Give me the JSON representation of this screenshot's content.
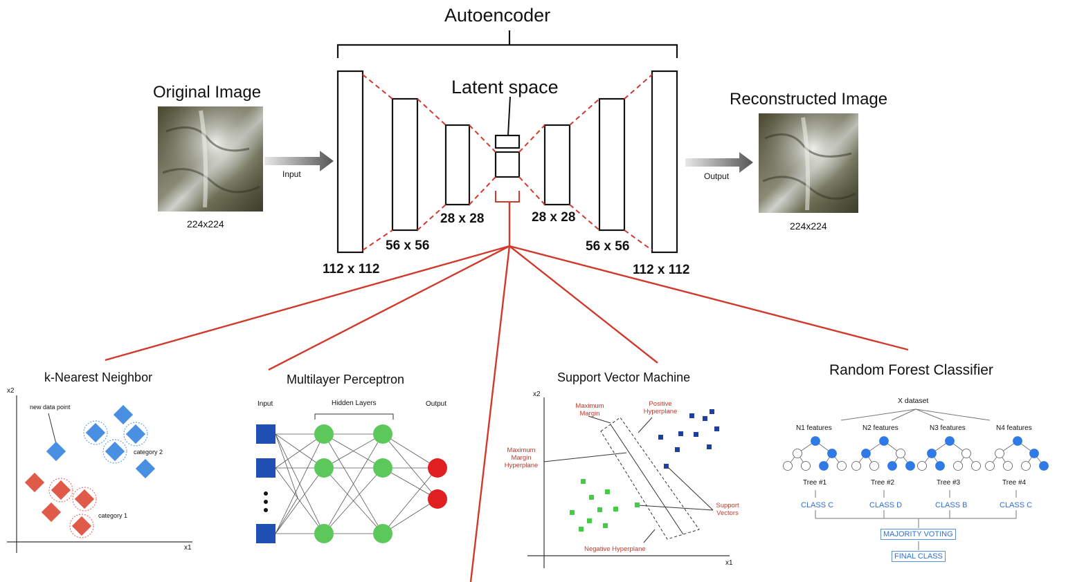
{
  "autoencoder": {
    "title": "Autoencoder",
    "latent_label": "Latent space",
    "input_title": "Original Image",
    "input_size": "224x224",
    "input_arrow": "Input",
    "output_title": "Reconstructed Image",
    "output_size": "224x224",
    "output_arrow": "Output",
    "dims": {
      "enc1": "112 x 112",
      "enc2": "56 x 56",
      "enc3": "28 x 28",
      "dec3": "28 x 28",
      "dec2": "56 x 56",
      "dec1": "112 x 112"
    }
  },
  "knn": {
    "title": "k-Nearest Neighbor",
    "x_label": "x1",
    "y_label": "x2",
    "new_point": "new data point",
    "cat1": "category 1",
    "cat2": "category 2"
  },
  "mlp": {
    "title": "Multilayer Perceptron",
    "input": "Input",
    "hidden": "Hidden Layers",
    "output": "Output"
  },
  "svm": {
    "title": "Support Vector Machine",
    "x_label": "x1",
    "y_label": "x2",
    "max_margin": "Maximum Margin",
    "pos_hyper": "Positive Hyperplane",
    "max_margin_hyper": "Maximum Margin Hyperplane",
    "support_vectors": "Support Vectors",
    "neg_hyper": "Negative Hyperplane"
  },
  "rf": {
    "title": "Random Forest Classifier",
    "dataset": "X dataset",
    "trees": [
      {
        "features": "N1 features",
        "tree": "Tree #1",
        "class": "CLASS C"
      },
      {
        "features": "N2 features",
        "tree": "Tree #2",
        "class": "CLASS D"
      },
      {
        "features": "N3 features",
        "tree": "Tree #3",
        "class": "CLASS B"
      },
      {
        "features": "N4 features",
        "tree": "Tree #4",
        "class": "CLASS C"
      }
    ],
    "voting": "MAJORITY VOTING",
    "final": "FINAL CLASS"
  },
  "colors": {
    "accent_red": "#d0392b",
    "knn_blue": "#4a90e2",
    "knn_red": "#e05a4a",
    "mlp_blue": "#1f4fb3",
    "mlp_green": "#5cc85c",
    "mlp_red": "#e02020",
    "svm_blue": "#1f3fa0",
    "svm_green": "#44cc44",
    "rf_blue": "#2f7ae5"
  }
}
